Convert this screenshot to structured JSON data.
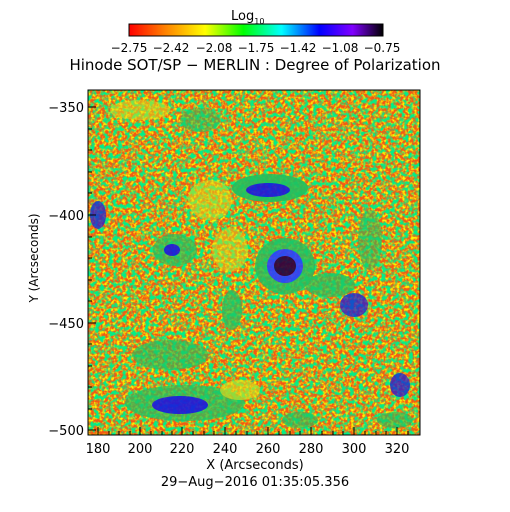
{
  "colorbar": {
    "title_base": "Log",
    "title_sub": "10",
    "tick_labels": [
      "−2.75",
      "−2.42",
      "−2.08",
      "−1.75",
      "−1.42",
      "−1.08",
      "−0.75"
    ],
    "range": [
      -2.75,
      -0.75
    ],
    "colormap": "rainbow-red-to-black"
  },
  "plot": {
    "title": "Hinode SOT/SP − MERLIN : Degree of Polarization",
    "x_label": "X (Arcseconds)",
    "y_label": "Y (Arcseconds)",
    "x_range": [
      175,
      328
    ],
    "y_range": [
      -502,
      -335
    ],
    "x_ticks": [
      "180",
      "200",
      "220",
      "240",
      "260",
      "280",
      "300",
      "320"
    ],
    "y_ticks": [
      "−350",
      "−400",
      "−450",
      "−500"
    ],
    "timestamp": "29−Aug−2016 01:35:05.356",
    "colors": {
      "background_field": "#f06a1a",
      "low": "#ff2a00",
      "mid_yellow": "#e8e800",
      "mid_green": "#00d050",
      "high_blue": "#1010ff",
      "max_dark": "#200030"
    }
  }
}
